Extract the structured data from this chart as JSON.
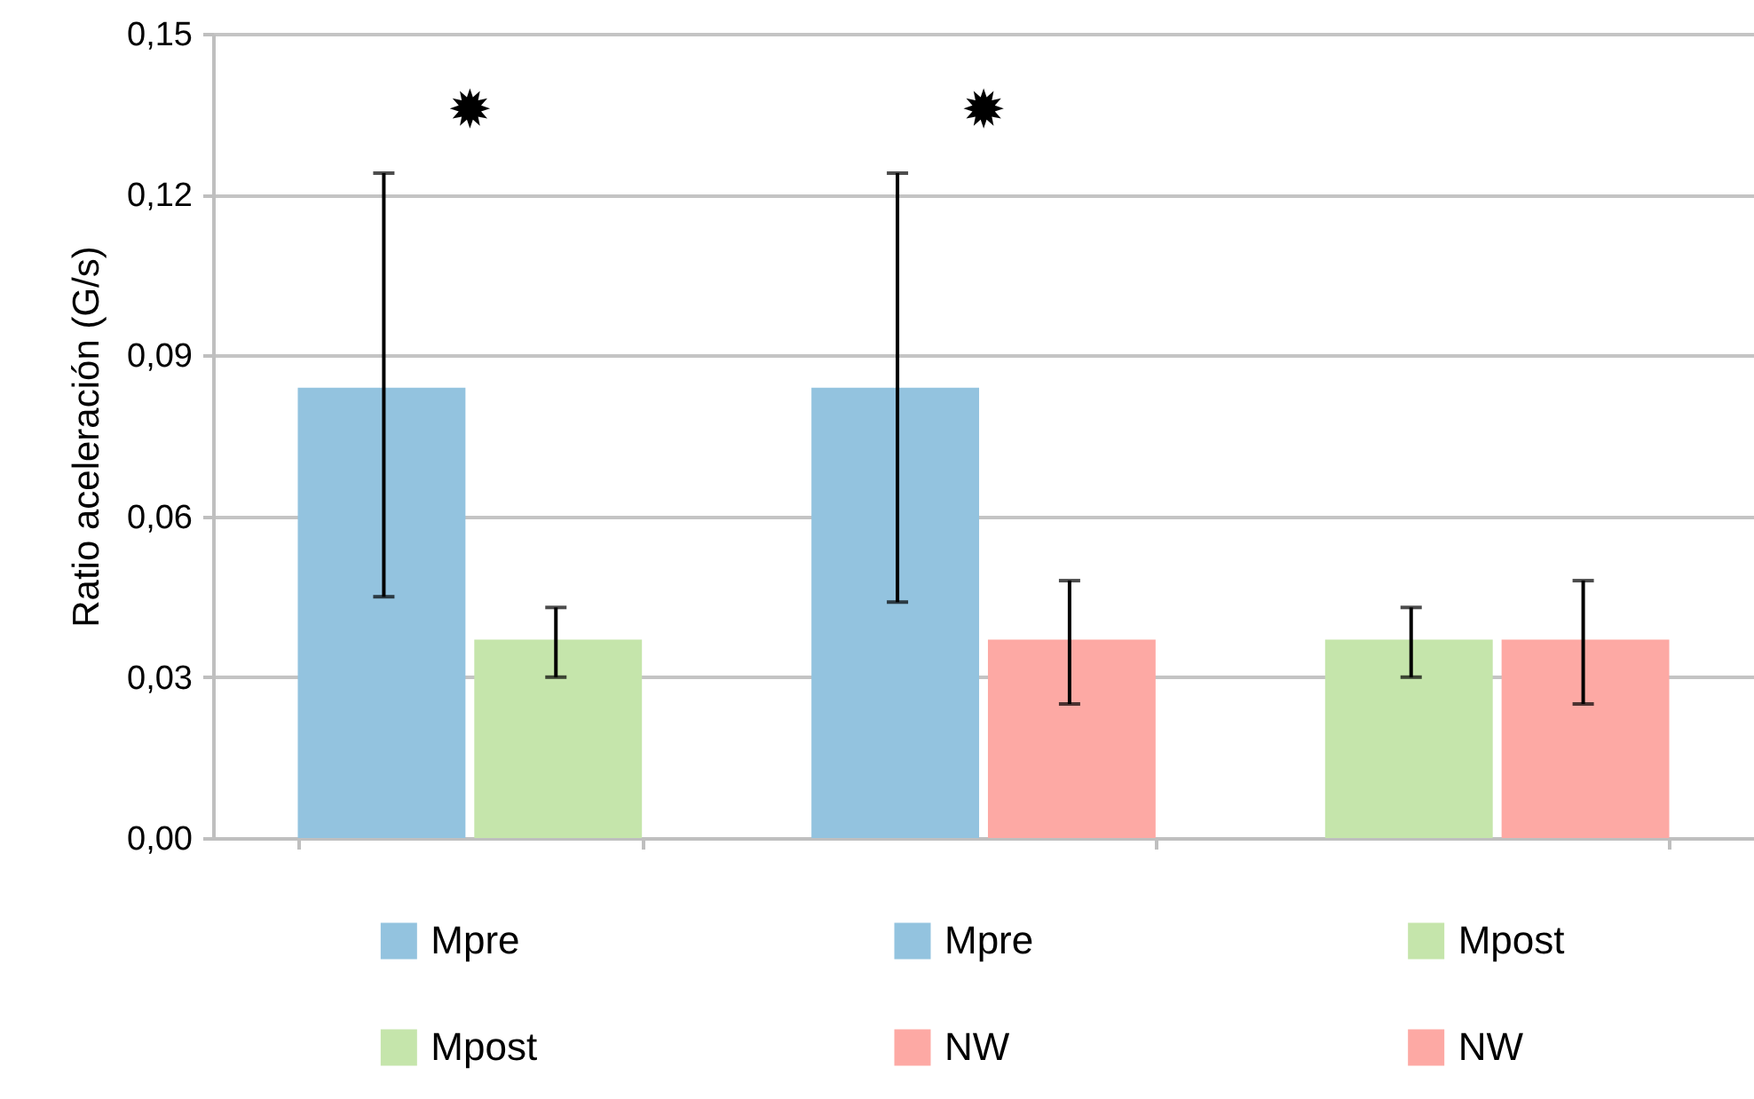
{
  "chart_data": {
    "type": "bar",
    "categories": [
      null,
      null,
      null
    ],
    "ylabel": "Ratio aceleración  (G/s)",
    "ylim": [
      0,
      0.15
    ],
    "yticks": [
      {
        "value": 0,
        "label": "0,00"
      },
      {
        "value": 0.03,
        "label": "0,03"
      },
      {
        "value": 0.06,
        "label": "0,06"
      },
      {
        "value": 0.09,
        "label": "0,09"
      },
      {
        "value": 0.12,
        "label": "0,12"
      },
      {
        "value": 0.15,
        "label": "0,15"
      }
    ],
    "grid": "y",
    "legend": "bottom",
    "annotations": [
      "✹",
      "✹"
    ],
    "series": [
      {
        "name": "Mpre",
        "color": "#93c3df",
        "values": [
          0.084,
          0.084,
          null
        ],
        "errors": [
          [
            0.045,
            0.124
          ],
          [
            0.044,
            0.124
          ],
          null
        ]
      },
      {
        "name": "Mpost",
        "color": "#c5e5ab",
        "values": [
          0.037,
          null,
          0.037
        ],
        "errors": [
          [
            0.03,
            0.043
          ],
          null,
          [
            0.03,
            0.043
          ]
        ]
      },
      {
        "name": "NW",
        "color": "#fda9a4",
        "values": [
          null,
          0.037,
          0.037
        ],
        "errors": [
          null,
          [
            0.025,
            0.048
          ],
          [
            0.025,
            0.048
          ]
        ]
      }
    ]
  }
}
